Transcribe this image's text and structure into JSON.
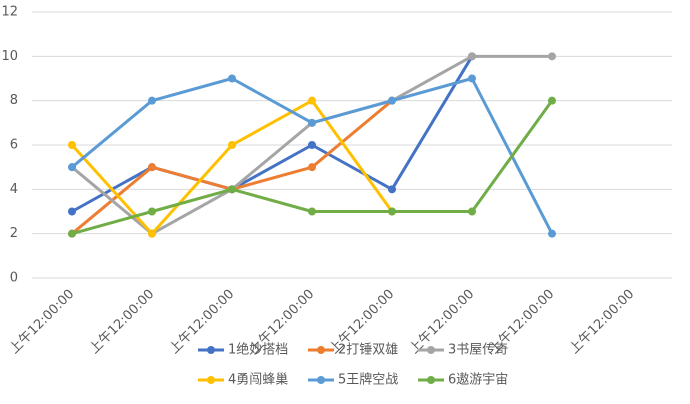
{
  "chart_data": {
    "type": "line",
    "categories": [
      "上午12:00:00",
      "上午12:00:00",
      "上午12:00:00",
      "上午12:00:00",
      "上午12:00:00",
      "上午12:00:00",
      "上午12:00:00",
      "上午12:00:00"
    ],
    "series": [
      {
        "name": "1绝妙搭档",
        "color": "#4472c4",
        "values": [
          3,
          5,
          4,
          6,
          4,
          10,
          null,
          null
        ]
      },
      {
        "name": "2打锤双雄",
        "color": "#ed7d31",
        "values": [
          2,
          5,
          4,
          5,
          8,
          null,
          null,
          null
        ]
      },
      {
        "name": "3书屋传奇",
        "color": "#a5a5a5",
        "values": [
          5,
          2,
          4,
          7,
          8,
          10,
          10,
          null
        ]
      },
      {
        "name": "4勇闯蜂巢",
        "color": "#ffc000",
        "values": [
          6,
          2,
          6,
          8,
          3,
          null,
          null,
          null
        ]
      },
      {
        "name": "5王牌空战",
        "color": "#5b9bd5",
        "values": [
          5,
          8,
          9,
          7,
          8,
          9,
          2,
          null
        ]
      },
      {
        "name": "6遨游宇宙",
        "color": "#70ad47",
        "values": [
          2,
          3,
          4,
          3,
          3,
          3,
          8,
          null
        ]
      }
    ],
    "ylim": [
      0,
      12
    ],
    "yticks": [
      0,
      2,
      4,
      6,
      8,
      10,
      12
    ],
    "grid": true,
    "legend": "bottom"
  }
}
